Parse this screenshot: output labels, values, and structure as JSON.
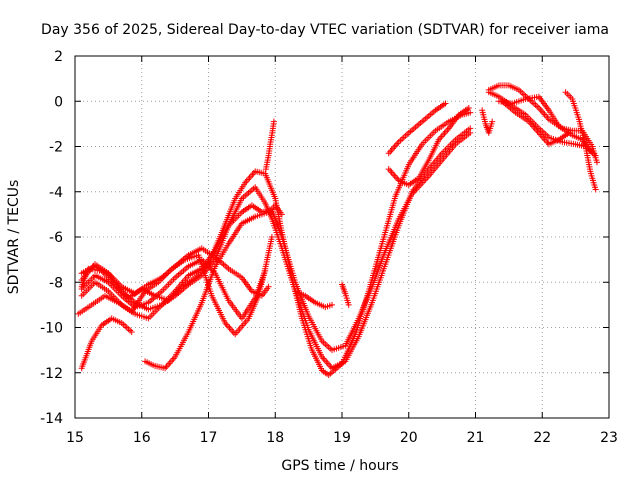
{
  "chart_data": {
    "type": "scatter",
    "title": "Day 356 of 2025, Sidereal Day-to-day VTEC variation (SDTVAR) for receiver iama",
    "xlabel": "GPS time / hours",
    "ylabel": "SDTVAR / TECUs",
    "xlim": [
      15,
      23
    ],
    "ylim": [
      -14,
      2
    ],
    "xticks": [
      15,
      16,
      17,
      18,
      19,
      20,
      21,
      22,
      23
    ],
    "yticks": [
      -14,
      -12,
      -10,
      -8,
      -6,
      -4,
      -2,
      0,
      2
    ],
    "grid": true,
    "marker": "+",
    "series_color": "#ff0000",
    "series": [
      {
        "name": "track-1",
        "x": [
          15.1,
          15.2,
          15.4,
          15.6,
          15.8,
          16.0,
          16.2,
          16.4,
          16.6,
          16.8,
          17.0,
          17.2,
          17.4,
          17.55,
          17.7,
          17.85,
          18.0,
          18.1,
          18.25,
          18.4,
          18.55,
          18.7,
          18.8,
          19.0,
          19.2,
          19.4,
          19.6,
          19.8,
          20.0,
          20.2,
          20.4,
          20.6,
          20.8,
          20.92
        ],
        "y": [
          -8.2,
          -7.4,
          -7.5,
          -8.1,
          -8.7,
          -8.3,
          -8.6,
          -8.8,
          -8.2,
          -7.8,
          -7.2,
          -5.8,
          -4.3,
          -3.6,
          -3.1,
          -3.2,
          -4.3,
          -5.8,
          -7.8,
          -9.6,
          -11.0,
          -11.9,
          -12.1,
          -11.6,
          -10.3,
          -8.4,
          -6.3,
          -4.2,
          -2.8,
          -1.9,
          -1.3,
          -0.9,
          -0.6,
          -0.5
        ]
      },
      {
        "name": "track-2",
        "x": [
          15.1,
          15.3,
          15.5,
          15.7,
          15.9,
          16.1,
          16.3,
          16.5,
          16.7,
          16.9,
          17.1,
          17.3,
          17.5,
          17.7,
          17.85,
          17.95,
          18.1,
          18.3,
          18.5,
          18.7,
          18.85,
          19.05,
          19.25,
          19.45,
          19.65,
          19.85,
          20.05,
          20.3,
          20.5,
          20.7,
          20.92
        ],
        "y": [
          -7.9,
          -7.2,
          -7.6,
          -8.4,
          -8.9,
          -9.2,
          -9.0,
          -8.6,
          -8.1,
          -7.7,
          -7.0,
          -5.5,
          -4.3,
          -3.8,
          -4.5,
          -5.2,
          -6.5,
          -8.4,
          -10.1,
          -11.3,
          -11.8,
          -11.5,
          -10.4,
          -8.9,
          -7.2,
          -5.5,
          -4.0,
          -3.0,
          -2.3,
          -1.7,
          -1.2
        ]
      },
      {
        "name": "track-3",
        "x": [
          15.1,
          15.3,
          15.5,
          15.7,
          15.9,
          16.1,
          16.3,
          16.5,
          16.7,
          16.9,
          17.1,
          17.3,
          17.5,
          17.65,
          17.8,
          17.95,
          18.1,
          18.3,
          18.5,
          18.7,
          18.85,
          19.05,
          19.25,
          19.45,
          19.65,
          19.85,
          20.05,
          20.3,
          20.5,
          20.7,
          20.92
        ],
        "y": [
          -8.6,
          -8.0,
          -8.4,
          -9.0,
          -9.4,
          -9.6,
          -9.0,
          -8.4,
          -7.7,
          -7.4,
          -6.6,
          -5.5,
          -4.9,
          -4.6,
          -4.9,
          -4.8,
          -6.0,
          -8.0,
          -9.5,
          -10.6,
          -11.0,
          -10.8,
          -9.6,
          -8.2,
          -6.6,
          -5.2,
          -4.1,
          -3.3,
          -2.6,
          -1.9,
          -1.4
        ]
      },
      {
        "name": "track-4",
        "x": [
          15.1,
          15.3,
          15.5,
          15.7,
          15.9,
          16.1,
          16.3,
          16.5,
          16.7,
          16.9,
          17.1,
          17.3,
          17.5,
          17.7,
          17.85
        ],
        "y": [
          -8.3,
          -7.7,
          -8.0,
          -8.6,
          -9.1,
          -8.9,
          -8.4,
          -7.8,
          -7.3,
          -7.0,
          -7.6,
          -8.8,
          -9.6,
          -8.7,
          -7.5
        ]
      },
      {
        "name": "track-5",
        "x": [
          15.1,
          15.3,
          15.5,
          15.7,
          15.9,
          16.1,
          16.3,
          16.5,
          16.7,
          16.9,
          17.1,
          17.3,
          17.5,
          17.65,
          17.8,
          17.9
        ],
        "y": [
          -7.6,
          -7.3,
          -7.6,
          -8.2,
          -8.5,
          -8.1,
          -7.8,
          -7.3,
          -6.8,
          -6.5,
          -6.9,
          -7.4,
          -7.8,
          -8.4,
          -8.6,
          -8.2
        ]
      },
      {
        "name": "track-6",
        "x": [
          15.05,
          15.25,
          15.45,
          15.65,
          15.85,
          16.05,
          16.25,
          16.45,
          16.65,
          16.85,
          17.05,
          17.25,
          17.4,
          17.6,
          17.75,
          17.85,
          17.95
        ],
        "y": [
          -9.4,
          -9.0,
          -8.6,
          -8.9,
          -9.3,
          -8.4,
          -8.0,
          -7.4,
          -7.0,
          -6.8,
          -8.6,
          -9.8,
          -10.3,
          -9.6,
          -8.6,
          -7.4,
          -6.0
        ]
      },
      {
        "name": "track-7",
        "x": [
          15.1,
          15.25,
          15.4,
          15.55,
          15.7,
          15.85
        ],
        "y": [
          -11.8,
          -10.6,
          -9.9,
          -9.6,
          -9.8,
          -10.2
        ]
      },
      {
        "name": "track-8",
        "x": [
          16.05,
          16.2,
          16.35,
          16.5,
          16.7,
          16.9,
          17.1,
          17.3,
          17.5,
          17.7,
          17.9,
          18.0,
          18.1
        ],
        "y": [
          -11.5,
          -11.7,
          -11.8,
          -11.3,
          -10.2,
          -8.9,
          -7.3,
          -6.3,
          -5.4,
          -5.1,
          -4.9,
          -4.6,
          -5.0
        ]
      },
      {
        "name": "track-9",
        "x": [
          17.86,
          17.9,
          17.93,
          17.96,
          17.98
        ],
        "y": [
          -3.0,
          -2.4,
          -1.8,
          -1.3,
          -0.9
        ]
      },
      {
        "name": "track-10",
        "x": [
          18.3,
          18.45,
          18.6,
          18.75,
          18.85
        ],
        "y": [
          -8.4,
          -8.6,
          -8.9,
          -9.1,
          -9.0
        ]
      },
      {
        "name": "track-11",
        "x": [
          19.0,
          19.05,
          19.1
        ],
        "y": [
          -8.1,
          -8.5,
          -9.0
        ]
      },
      {
        "name": "track-12",
        "x": [
          19.7,
          19.85,
          20.0,
          20.15,
          20.3,
          20.45,
          20.6,
          20.75,
          20.9
        ],
        "y": [
          -3.0,
          -3.5,
          -3.7,
          -3.4,
          -2.6,
          -1.7,
          -1.2,
          -0.6,
          -0.3
        ]
      },
      {
        "name": "track-13",
        "x": [
          19.7,
          19.85,
          20.0,
          20.2,
          20.4,
          20.55
        ],
        "y": [
          -2.3,
          -1.8,
          -1.4,
          -0.9,
          -0.4,
          -0.1
        ]
      },
      {
        "name": "track-14",
        "x": [
          21.1,
          21.15,
          21.2,
          21.25
        ],
        "y": [
          -0.4,
          -1.0,
          -1.4,
          -0.9
        ]
      },
      {
        "name": "track-15",
        "x": [
          21.2,
          21.35,
          21.5,
          21.65,
          21.8,
          21.95,
          22.1,
          22.3,
          22.45,
          22.6,
          22.75,
          22.82
        ],
        "y": [
          0.5,
          0.7,
          0.7,
          0.5,
          0.1,
          -0.3,
          -0.8,
          -1.2,
          -1.3,
          -1.3,
          -2.0,
          -2.7
        ]
      },
      {
        "name": "track-16",
        "x": [
          21.2,
          21.35,
          21.55,
          21.75,
          21.95,
          22.1,
          22.3,
          22.5,
          22.65,
          22.8
        ],
        "y": [
          0.4,
          0.2,
          -0.2,
          -0.6,
          -1.2,
          -1.6,
          -1.8,
          -1.9,
          -2.0,
          -2.4
        ]
      },
      {
        "name": "track-17",
        "x": [
          21.35,
          21.55,
          21.75,
          21.95,
          22.1,
          22.25,
          22.45,
          22.6,
          22.75
        ],
        "y": [
          0.0,
          -0.1,
          0.1,
          0.2,
          -0.4,
          -1.1,
          -1.5,
          -1.7,
          -2.3
        ]
      },
      {
        "name": "track-18",
        "x": [
          21.4,
          21.6,
          21.8,
          21.95,
          22.1,
          22.25,
          22.4
        ],
        "y": [
          0.0,
          -0.5,
          -0.9,
          -1.4,
          -1.9,
          -1.7,
          -1.4
        ]
      },
      {
        "name": "track-19",
        "x": [
          22.35,
          22.45,
          22.55,
          22.65,
          22.72,
          22.8
        ],
        "y": [
          0.4,
          0.1,
          -0.8,
          -2.0,
          -3.1,
          -3.9
        ]
      }
    ]
  }
}
